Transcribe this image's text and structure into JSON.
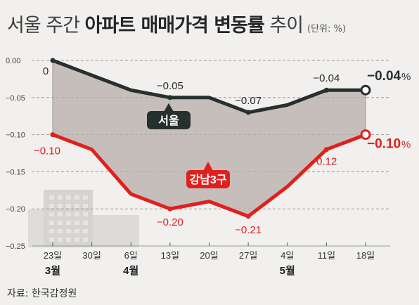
{
  "header": {
    "title_light": "서울 주간 ",
    "title_bold": "아파트 매매가격 변동률",
    "title_tail": " 추이",
    "unit": "(단위: %)"
  },
  "source": "자료: 한국감정원",
  "colors": {
    "seoul": "#26302f",
    "gangnam": "#e0201f",
    "band": "#b7aeaa",
    "grid": "#9b9b9b",
    "background": "#f1f0ee"
  },
  "chart_data": {
    "type": "line",
    "categories": [
      "23일",
      "30일",
      "6일",
      "13일",
      "20일",
      "27일",
      "4일",
      "11일",
      "18일"
    ],
    "month_labels": [
      {
        "index": 0,
        "label": "3월"
      },
      {
        "index": 2,
        "label": "4월"
      },
      {
        "index": 6,
        "label": "5월"
      }
    ],
    "yticks": [
      "0.00",
      "-0.05",
      "-0.10",
      "-0.15",
      "-0.20",
      "-0.25"
    ],
    "ylim": [
      -0.25,
      0.0
    ],
    "grid": true,
    "series": [
      {
        "name": "서울",
        "values": [
          0.0,
          -0.02,
          -0.04,
          -0.05,
          -0.05,
          -0.07,
          -0.06,
          -0.04,
          -0.04
        ],
        "labels": [
          {
            "index": 0,
            "text": "0"
          },
          {
            "index": 3,
            "text": "-0.05"
          },
          {
            "index": 5,
            "text": "-0.07"
          },
          {
            "index": 7,
            "text": "-0.04"
          }
        ],
        "final_label": "-0.04",
        "final_unit": "%"
      },
      {
        "name": "강남3구",
        "values": [
          -0.1,
          -0.12,
          -0.18,
          -0.2,
          -0.19,
          -0.21,
          -0.17,
          -0.12,
          -0.1
        ],
        "labels": [
          {
            "index": 0,
            "text": "-0.10"
          },
          {
            "index": 3,
            "text": "-0.20"
          },
          {
            "index": 5,
            "text": "-0.21"
          },
          {
            "index": 7,
            "text": "-0.12"
          }
        ],
        "final_label": "-0.10",
        "final_unit": "%"
      }
    ]
  }
}
